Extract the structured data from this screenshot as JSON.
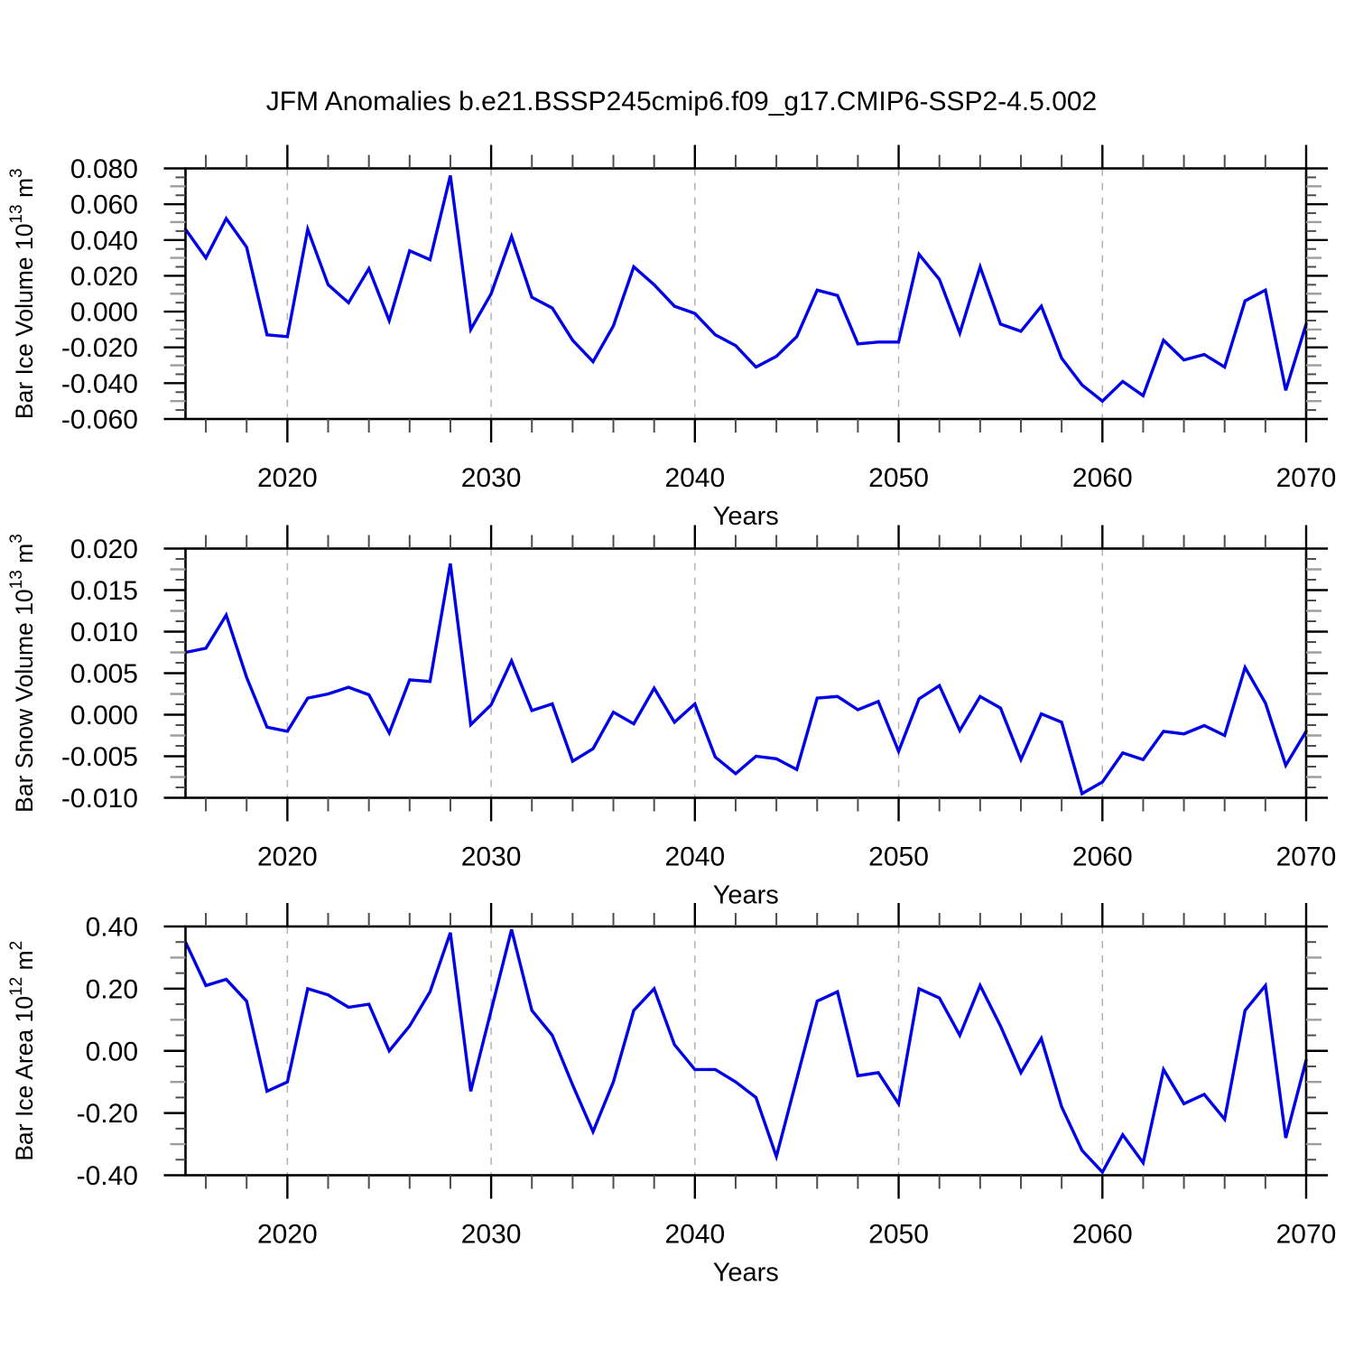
{
  "title": "JFM Anomalies b.e21.BSSP245cmip6.f09_g17.CMIP6-SSP2-4.5.002",
  "colors": {
    "line": "#0000e8",
    "axis": "#000000",
    "major_tick": "#000000",
    "minor_tick": "#4d4d4d",
    "half_tick": "#9e9e9e",
    "grid": "#b3b3b3"
  },
  "years": [
    2015,
    2016,
    2017,
    2018,
    2019,
    2020,
    2021,
    2022,
    2023,
    2024,
    2025,
    2026,
    2027,
    2028,
    2029,
    2030,
    2031,
    2032,
    2033,
    2034,
    2035,
    2036,
    2037,
    2038,
    2039,
    2040,
    2041,
    2042,
    2043,
    2044,
    2045,
    2046,
    2047,
    2048,
    2049,
    2050,
    2051,
    2052,
    2053,
    2054,
    2055,
    2056,
    2057,
    2058,
    2059,
    2060,
    2061,
    2062,
    2063,
    2064,
    2065,
    2066,
    2067,
    2068,
    2069,
    2070
  ],
  "chart_data": [
    {
      "type": "line",
      "xlabel": "Years",
      "ylabel_plain": "Bar Ice Volume 10^13 m^3",
      "ylabel_parts": [
        {
          "text": "Bar Ice Volume 10"
        },
        {
          "text": "13",
          "sup": true
        },
        {
          "text": " m"
        },
        {
          "text": "3",
          "sup": true
        }
      ],
      "ylim": [
        -0.06,
        0.08
      ],
      "ytick_step": 0.02,
      "ytick_labels": [
        "0.080",
        "0.060",
        "0.040",
        "0.020",
        "0.000",
        "-0.020",
        "-0.040",
        "-0.060"
      ],
      "xtick_years": [
        2020,
        2030,
        2040,
        2050,
        2060,
        2070
      ],
      "xtick_labels": [
        "2020",
        "2030",
        "2040",
        "2050",
        "2060",
        "2070"
      ],
      "grid_years": [
        2020,
        2030,
        2040,
        2050,
        2060
      ],
      "values": [
        0.046,
        0.03,
        0.052,
        0.036,
        -0.013,
        -0.014,
        0.046,
        0.015,
        0.005,
        0.024,
        -0.005,
        0.034,
        0.029,
        0.076,
        -0.01,
        0.01,
        0.042,
        0.008,
        0.002,
        -0.016,
        -0.028,
        -0.008,
        0.025,
        0.015,
        0.003,
        -0.001,
        -0.013,
        -0.019,
        -0.031,
        -0.025,
        -0.014,
        0.012,
        0.009,
        -0.018,
        -0.017,
        -0.017,
        0.032,
        0.018,
        -0.012,
        0.025,
        -0.007,
        -0.011,
        0.003,
        -0.026,
        -0.041,
        -0.05,
        -0.039,
        -0.047,
        -0.016,
        -0.027,
        -0.024,
        -0.031,
        0.006,
        0.012,
        -0.044,
        -0.007
      ]
    },
    {
      "type": "line",
      "xlabel": "Years",
      "ylabel_plain": "Bar Snow Volume 10^13 m^3",
      "ylabel_parts": [
        {
          "text": "Bar Snow Volume 10"
        },
        {
          "text": "13",
          "sup": true
        },
        {
          "text": " m"
        },
        {
          "text": "3",
          "sup": true
        }
      ],
      "ylim": [
        -0.01,
        0.02
      ],
      "ytick_step": 0.005,
      "ytick_labels": [
        "0.020",
        "0.015",
        "0.010",
        "0.005",
        "0.000",
        "-0.005",
        "-0.010"
      ],
      "xtick_years": [
        2020,
        2030,
        2040,
        2050,
        2060,
        2070
      ],
      "xtick_labels": [
        "2020",
        "2030",
        "2040",
        "2050",
        "2060",
        "2070"
      ],
      "grid_years": [
        2020,
        2030,
        2040,
        2050,
        2060
      ],
      "values": [
        0.0075,
        0.008,
        0.012,
        0.0045,
        -0.0015,
        -0.002,
        0.002,
        0.0025,
        0.0033,
        0.0024,
        -0.0022,
        0.0042,
        0.004,
        0.0182,
        -0.0012,
        0.0012,
        0.0065,
        0.0005,
        0.0013,
        -0.0056,
        -0.0041,
        0.0003,
        -0.0011,
        0.0032,
        -0.0009,
        0.0013,
        -0.0051,
        -0.0071,
        -0.005,
        -0.0053,
        -0.0066,
        0.002,
        0.0022,
        0.0006,
        0.0016,
        -0.0044,
        0.0019,
        0.0035,
        -0.0019,
        0.0022,
        0.0008,
        -0.0054,
        0.0001,
        -0.0009,
        -0.0095,
        -0.0081,
        -0.0046,
        -0.0054,
        -0.002,
        -0.0023,
        -0.0013,
        -0.0025,
        0.0057,
        0.0014,
        -0.0061,
        -0.002
      ]
    },
    {
      "type": "line",
      "xlabel": "Years",
      "ylabel_plain": "Bar Ice Area 10^12 m^2",
      "ylabel_parts": [
        {
          "text": "Bar Ice Area 10"
        },
        {
          "text": "12",
          "sup": true
        },
        {
          "text": " m"
        },
        {
          "text": "2",
          "sup": true
        }
      ],
      "ylim": [
        -0.4,
        0.4
      ],
      "ytick_step": 0.2,
      "ytick_labels": [
        "0.40",
        "0.20",
        "0.00",
        "-0.20",
        "-0.40"
      ],
      "xtick_years": [
        2020,
        2030,
        2040,
        2050,
        2060,
        2070
      ],
      "xtick_labels": [
        "2020",
        "2030",
        "2040",
        "2050",
        "2060",
        "2070"
      ],
      "grid_years": [
        2020,
        2030,
        2040,
        2050,
        2060
      ],
      "values": [
        0.35,
        0.21,
        0.23,
        0.16,
        -0.13,
        -0.1,
        0.2,
        0.18,
        0.14,
        0.15,
        0.0,
        0.08,
        0.19,
        0.38,
        -0.13,
        0.13,
        0.39,
        0.13,
        0.05,
        -0.11,
        -0.26,
        -0.1,
        0.13,
        0.2,
        0.02,
        -0.06,
        -0.06,
        -0.1,
        -0.15,
        -0.34,
        -0.09,
        0.16,
        0.19,
        -0.08,
        -0.07,
        -0.17,
        0.2,
        0.17,
        0.05,
        0.21,
        0.08,
        -0.07,
        0.04,
        -0.18,
        -0.32,
        -0.39,
        -0.27,
        -0.36,
        -0.06,
        -0.17,
        -0.14,
        -0.22,
        0.13,
        0.21,
        -0.28,
        -0.03
      ]
    }
  ]
}
